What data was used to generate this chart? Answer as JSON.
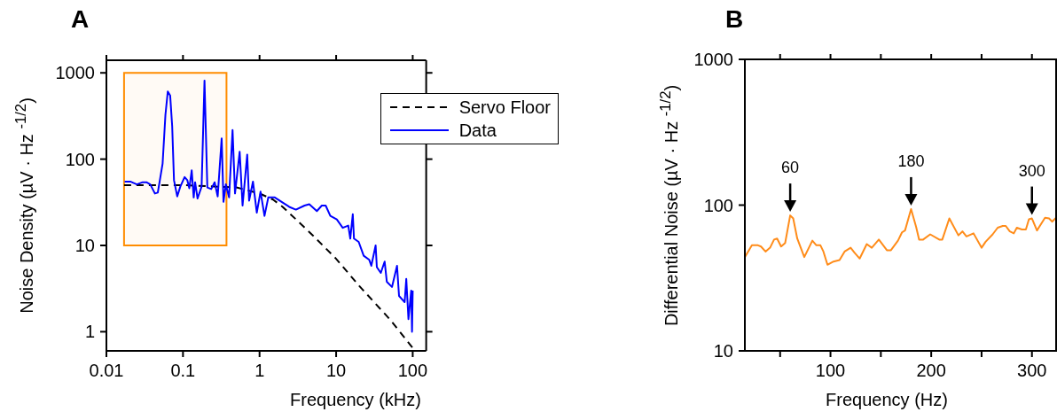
{
  "chart_data": [
    {
      "type": "line",
      "title": "A",
      "xlabel": "Frequency (kHz)",
      "ylabel": "Noise Density (µV · Hz $^{-1/2}$)",
      "log": "xy",
      "xlim": [
        0.01,
        150
      ],
      "ylim": [
        0.6,
        1400
      ],
      "xticks": [
        0.01,
        0.1,
        1,
        10,
        100
      ],
      "yticks": [
        1,
        10,
        100,
        1000
      ],
      "legend": "top right",
      "bands": [
        {
          "axis": "x",
          "from": 0.017,
          "to": 0.37,
          "color": "#ff8c00"
        }
      ],
      "series": [
        {
          "name": "Servo Floor",
          "color": "#000000",
          "line_style": "dashed",
          "x": [
            0.017,
            0.1,
            0.5,
            1,
            1.5,
            2,
            3,
            5,
            10,
            20,
            50,
            100
          ],
          "values": [
            50,
            50,
            47,
            40,
            34,
            28,
            20,
            13,
            7,
            3.4,
            1.4,
            0.65
          ]
        },
        {
          "name": "Data",
          "color": "#0000ff",
          "x": [
            0.0173,
            0.0205,
            0.025,
            0.0297,
            0.0333,
            0.0374,
            0.043,
            0.0469,
            0.0542,
            0.059,
            0.0633,
            0.068,
            0.0723,
            0.0763,
            0.0841,
            0.0923,
            0.105,
            0.114,
            0.121,
            0.13,
            0.138,
            0.144,
            0.155,
            0.175,
            0.191,
            0.208,
            0.234,
            0.259,
            0.284,
            0.32,
            0.338,
            0.363,
            0.4,
            0.444,
            0.478,
            0.55,
            0.6,
            0.69,
            0.73,
            0.82,
            0.92,
            1.03,
            1.16,
            1.3,
            1.58,
            2.44,
            2.98,
            3.87,
            4.46,
            5.6,
            6.5,
            7.3,
            8.4,
            10.2,
            12.2,
            14.4,
            15.3,
            16.5,
            17.1,
            19.7,
            22.9,
            27.1,
            28.8,
            32.8,
            34,
            38.3,
            43,
            45.9,
            53.6,
            62.4,
            66.3,
            78.5,
            82.4,
            88,
            95.6,
            98,
            100
          ],
          "values": [
            55,
            55,
            51,
            54,
            54,
            51,
            40,
            41,
            89,
            327,
            608,
            548,
            239,
            57,
            37,
            48,
            62,
            57,
            46,
            74,
            36,
            54,
            35,
            48,
            815,
            47,
            45,
            54,
            37,
            174,
            32,
            51,
            36,
            217,
            40,
            122,
            29,
            113,
            33,
            55,
            24,
            42,
            22,
            36,
            36,
            28,
            26,
            29,
            30,
            25,
            29,
            29,
            22,
            20,
            16,
            17,
            12,
            23,
            12,
            11,
            7.6,
            6.8,
            5.8,
            10,
            5.6,
            4.8,
            6.5,
            3.8,
            3.3,
            5.8,
            2.6,
            2.2,
            4.1,
            1.4,
            3,
            1,
            3
          ]
        }
      ]
    },
    {
      "type": "line",
      "title": "B",
      "xlabel": "Frequency (Hz)",
      "ylabel": "Differential Noise (µV · Hz $^{-1/2}$)",
      "log": "y",
      "xlim": [
        15,
        324
      ],
      "ylim": [
        10,
        1000
      ],
      "xticks": [
        {
          "value": 50,
          "label": null
        },
        100,
        {
          "value": 150,
          "label": null
        },
        200,
        {
          "value": 250,
          "label": null
        },
        300
      ],
      "yticks": [
        10,
        100,
        1000
      ],
      "annotations": [
        {
          "text": "60",
          "x": 60,
          "y": 85
        },
        {
          "text": "180",
          "x": 180,
          "y": 94
        },
        {
          "text": "300",
          "x": 300,
          "y": 81
        }
      ],
      "series": [
        {
          "color": "#ff8c1a",
          "x": [
            15,
            22,
            28,
            31,
            35.5,
            40,
            44,
            47,
            51,
            55,
            60,
            63,
            67,
            74,
            82,
            86,
            90,
            93,
            97,
            103,
            109,
            114,
            120,
            124,
            129,
            136,
            141,
            148,
            156,
            160,
            167,
            171,
            174,
            180,
            185,
            188,
            192,
            199,
            208,
            211,
            218,
            227,
            231,
            235,
            242,
            250,
            254,
            261,
            266,
            271,
            274,
            278,
            282,
            285,
            290,
            294,
            297,
            300,
            305,
            313,
            317,
            320,
            324
          ],
          "values": [
            44,
            53,
            53,
            52,
            48,
            51,
            58,
            59,
            52,
            55,
            85,
            81,
            59,
            44,
            57,
            53,
            53,
            48,
            39,
            41,
            42,
            48,
            51,
            47,
            43,
            54,
            51,
            58,
            49,
            49,
            57,
            65,
            67,
            94,
            71,
            58,
            58,
            63,
            58,
            58,
            81,
            62,
            66,
            61,
            64,
            51,
            56,
            63,
            70,
            72,
            72,
            66,
            64,
            70,
            68,
            68,
            80,
            81,
            67,
            82,
            81,
            77,
            82
          ]
        }
      ]
    }
  ]
}
